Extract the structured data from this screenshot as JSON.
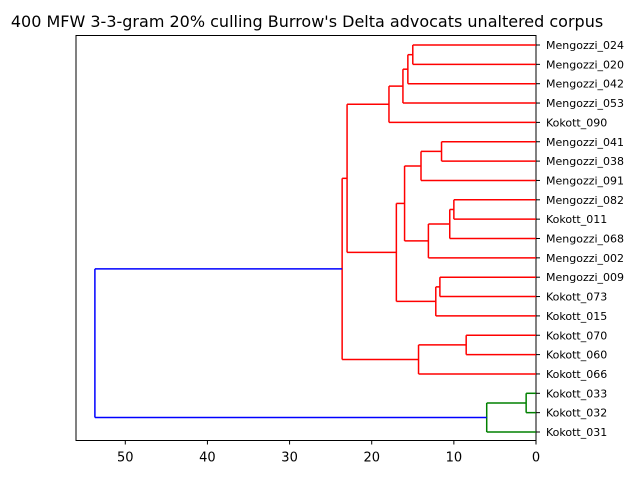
{
  "chart_data": {
    "type": "dendrogram",
    "title": "400 MFW 3-3-gram 20% culling Burrow's Delta advocats unaltered corpus",
    "xlabel": "",
    "ylabel": "",
    "orientation": "horizontal",
    "xlim": [
      56,
      0
    ],
    "x_ticks": [
      50,
      40,
      30,
      20,
      10,
      0
    ],
    "x_tick_labels": [
      "50",
      "40",
      "30",
      "20",
      "10",
      "0"
    ],
    "leaves": [
      "Mengozzi_024",
      "Mengozzi_020",
      "Mengozzi_042",
      "Mengozzi_053",
      "Kokott_090",
      "Mengozzi_041",
      "Mengozzi_038",
      "Mengozzi_091",
      "Mengozzi_082",
      "Kokott_011",
      "Mengozzi_068",
      "Mengozzi_002",
      "Mengozzi_009",
      "Kokott_073",
      "Kokott_015",
      "Kokott_070",
      "Kokott_060",
      "Kokott_066",
      "Kokott_033",
      "Kokott_032",
      "Kokott_031"
    ],
    "colors": {
      "cluster_a": "#ff0000",
      "cluster_b": "#008000",
      "root": "#0000ff"
    },
    "merges": [
      {
        "id": "n1",
        "children": [
          "Mengozzi_024",
          "Mengozzi_020"
        ],
        "height": 15.0,
        "color": "#ff0000"
      },
      {
        "id": "n2",
        "children": [
          "n1",
          "Mengozzi_042"
        ],
        "height": 15.6,
        "color": "#ff0000"
      },
      {
        "id": "n3",
        "children": [
          "n2",
          "Mengozzi_053"
        ],
        "height": 16.2,
        "color": "#ff0000"
      },
      {
        "id": "n4",
        "children": [
          "n3",
          "Kokott_090"
        ],
        "height": 17.9,
        "color": "#ff0000"
      },
      {
        "id": "n5",
        "children": [
          "Mengozzi_041",
          "Mengozzi_038"
        ],
        "height": 11.5,
        "color": "#ff0000"
      },
      {
        "id": "n6",
        "children": [
          "n5",
          "Mengozzi_091"
        ],
        "height": 14.0,
        "color": "#ff0000"
      },
      {
        "id": "n7",
        "children": [
          "Mengozzi_082",
          "Kokott_011"
        ],
        "height": 10.0,
        "color": "#ff0000"
      },
      {
        "id": "n8",
        "children": [
          "n7",
          "Mengozzi_068"
        ],
        "height": 10.5,
        "color": "#ff0000"
      },
      {
        "id": "n9",
        "children": [
          "n8",
          "Mengozzi_002"
        ],
        "height": 13.1,
        "color": "#ff0000"
      },
      {
        "id": "n10",
        "children": [
          "n6",
          "n9"
        ],
        "height": 16.0,
        "color": "#ff0000"
      },
      {
        "id": "n11",
        "children": [
          "Mengozzi_009",
          "Kokott_073"
        ],
        "height": 11.7,
        "color": "#ff0000"
      },
      {
        "id": "n12",
        "children": [
          "n11",
          "Kokott_015"
        ],
        "height": 12.2,
        "color": "#ff0000"
      },
      {
        "id": "n13",
        "children": [
          "n10",
          "n12"
        ],
        "height": 17.0,
        "color": "#ff0000"
      },
      {
        "id": "n14",
        "children": [
          "n4",
          "n13"
        ],
        "height": 23.0,
        "color": "#ff0000"
      },
      {
        "id": "n15",
        "children": [
          "Kokott_070",
          "Kokott_060"
        ],
        "height": 8.5,
        "color": "#ff0000"
      },
      {
        "id": "n16",
        "children": [
          "n15",
          "Kokott_066"
        ],
        "height": 14.3,
        "color": "#ff0000"
      },
      {
        "id": "n17",
        "children": [
          "n14",
          "n16"
        ],
        "height": 23.6,
        "color": "#ff0000"
      },
      {
        "id": "n18",
        "children": [
          "Kokott_033",
          "Kokott_032"
        ],
        "height": 1.2,
        "color": "#008000"
      },
      {
        "id": "n19",
        "children": [
          "n18",
          "Kokott_031"
        ],
        "height": 6.0,
        "color": "#008000"
      },
      {
        "id": "n20",
        "children": [
          "n17",
          "n19"
        ],
        "height": 53.7,
        "color": "#0000ff"
      }
    ]
  }
}
